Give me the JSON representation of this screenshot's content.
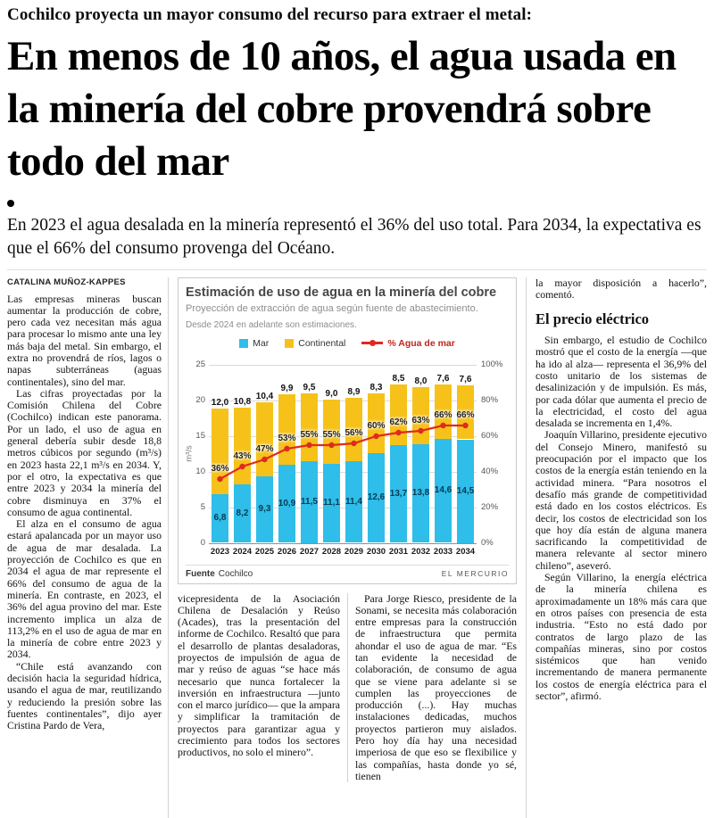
{
  "kicker": "Cochilco proyecta un mayor consumo del recurso para extraer el metal:",
  "headline": "En menos de 10 años, el agua usada en la minería del cobre provendrá sobre todo del mar",
  "deck": "En 2023 el agua desalada en la minería representó el 36% del uso total. Para 2034, la expectativa es que el 66% del consumo provenga del Océano.",
  "byline": "CATALINA MUÑOZ-KAPPES",
  "left_column": {
    "paragraphs": [
      "Las empresas mineras buscan aumentar la producción de cobre, pero cada vez necesitan más agua para procesar lo mismo ante una ley más baja del metal. Sin embargo, el extra no provendrá de ríos, lagos o napas subterráneas (aguas continentales), sino del mar.",
      "Las cifras proyectadas por la Comisión Chilena del Cobre (Cochilco) indican este panorama. Por un lado, el uso de agua en general debería subir desde 18,8 metros cúbicos por segundo (m³/s) en 2023 hasta 22,1 m³/s en 2034. Y, por el otro, la expectativa es que entre 2023 y 2034 la minería del cobre disminuya en 37% el consumo de agua continental.",
      "El alza en el consumo de agua estará apalancada por un mayor uso de agua de mar desalada. La proyección de Cochilco es que en 2034 el agua de mar represente el 66% del consumo de agua de la minería. En contraste, en 2023, el 36% del agua provino del mar. Este incremento implica un alza de 113,2% en el uso de agua de mar en la minería de cobre entre 2023 y 2034.",
      "“Chile está avanzando con decisión hacia la seguridad hídrica, usando el agua de mar, reutilizando y reduciendo la presión sobre las fuentes continentales”, dijo ayer Cristina Pardo de Vera,"
    ]
  },
  "mid_left_column": {
    "paragraphs": [
      "vicepresidenta de la Asociación Chilena de Desalación y Reúso (Acades), tras la presentación del informe de Cochilco. Resaltó que para el desarrollo de plantas desaladoras, proyectos de impulsión de agua de mar y reúso de aguas “se hace más necesario que nunca fortalecer la inversión en infraestructura —junto con el marco jurídico— que la ampara y simplificar la tramitación de proyectos para garantizar agua y crecimiento para todos los sectores productivos, no solo el minero”."
    ]
  },
  "mid_right_column": {
    "paragraphs": [
      "Para Jorge Riesco, presidente de la Sonami, se necesita más colaboración entre empresas para la construcción de infraestructura que permita ahondar el uso de agua de mar. “Es tan evidente la necesidad de colaboración, de consumo de agua que se viene para adelante si se cumplen las proyecciones de producción (...). Hay muchas instalaciones dedicadas, muchos proyectos partieron muy aislados. Pero hoy día hay una necesidad imperiosa de que eso se flexibilice y las compañías, hasta donde yo sé, tienen"
    ]
  },
  "right_column": {
    "intro": "la mayor disposición a hacerlo”, comentó.",
    "heading": "El precio eléctrico",
    "paragraphs": [
      "Sin embargo, el estudio de Cochilco mostró que el costo de la energía —que ha ido al alza— representa el 36,9% del costo unitario de los sistemas de desalinización y de impulsión. Es más, por cada dólar que aumenta el precio de la electricidad, el costo del agua desalada se incrementa en 1,4%.",
      "Joaquín Villarino, presidente ejecutivo del Consejo Minero, manifestó su preocupación por el impacto que los costos de la energía están teniendo en la actividad minera. “Para nosotros el desafío más grande de competitividad está dado en los costos eléctricos. Es decir, los costos de electricidad son los que hoy día están de alguna manera sacrificando la competitividad de manera relevante al sector minero chileno”, aseveró.",
      "Según Villarino, la energía eléctrica de la minería chilena es aproximadamente un 18% más cara que en otros países con presencia de esta industria. “Esto no está dado por contratos de largo plazo de las compañías mineras, sino por costos sistémicos que han venido incrementando de manera permanente los costos de energía eléctrica para el sector”, afirmó."
    ]
  },
  "chart_data": {
    "type": "bar",
    "variant": "stacked-bars-with-line",
    "title": "Estimación de uso de agua en la minería del cobre",
    "subtitle": "Proyección de extracción de agua según fuente de abastecimiento.",
    "note": "Desde 2024 en adelante son estimaciones.",
    "categories": [
      "2023",
      "2024",
      "2025",
      "2026",
      "2027",
      "2028",
      "2029",
      "2030",
      "2031",
      "2032",
      "2033",
      "2034"
    ],
    "series": [
      {
        "name": "Mar",
        "color": "#2fbde9",
        "values": [
          6.8,
          8.2,
          9.3,
          10.9,
          11.5,
          11.1,
          11.4,
          12.6,
          13.7,
          13.8,
          14.6,
          14.5
        ],
        "labels": [
          "6,8",
          "8,2",
          "9,3",
          "10,9",
          "11,5",
          "11,1",
          "11,4",
          "12,6",
          "13,7",
          "13,8",
          "14,6",
          "14,5"
        ]
      },
      {
        "name": "Continental",
        "color": "#f6c21a",
        "values": [
          12.0,
          10.8,
          10.4,
          9.9,
          9.5,
          9.0,
          8.9,
          8.3,
          8.5,
          8.0,
          7.6,
          7.6
        ],
        "labels": [
          "12,0",
          "10,8",
          "10,4",
          "9,9",
          "9,5",
          "9,0",
          "8,9",
          "8,3",
          "8,5",
          "8,0",
          "7,6",
          "7,6"
        ]
      }
    ],
    "line": {
      "name": "% Agua de mar",
      "color": "#df2a1e",
      "values": [
        36,
        43,
        47,
        53,
        55,
        55,
        56,
        60,
        62,
        63,
        66,
        66
      ],
      "labels": [
        "36%",
        "43%",
        "47%",
        "53%",
        "55%",
        "55%",
        "56%",
        "60%",
        "62%",
        "63%",
        "66%",
        "66%"
      ]
    },
    "ylabel": "m³/s",
    "ylim": [
      0,
      25
    ],
    "y2lim": [
      0,
      100
    ],
    "yticks_left": [
      "25",
      "20",
      "15",
      "10",
      "5",
      "0"
    ],
    "yticks_right": [
      "100%",
      "80%",
      "60%",
      "40%",
      "20%",
      "0%"
    ],
    "grid": true,
    "legend_position": "top",
    "source_label": "Fuente",
    "source": "Cochilco",
    "credit": "EL MERCURIO"
  }
}
